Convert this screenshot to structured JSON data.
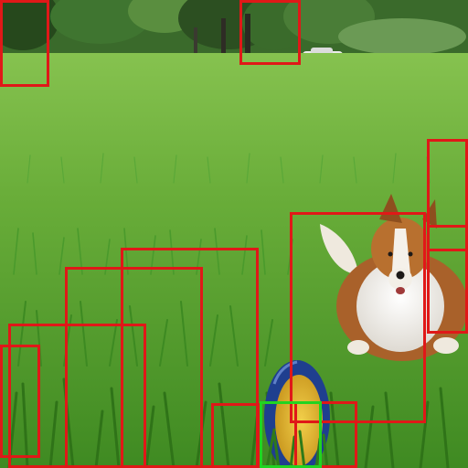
{
  "scene": {
    "description_free": true,
    "colors": {
      "sky": "#dfe7ea",
      "treeline": "#2f5a25",
      "grass_far": "#6fb03d",
      "grass_near": "#4f9c2b",
      "dog_coat": "#b86a2c",
      "dog_white": "#f3f0ea",
      "frisbee_rim": "#1f3f8f",
      "frisbee_center": "#e0b32a",
      "car": "#e8e8e8"
    }
  },
  "overlays": {
    "box_colors": {
      "red": "#e01818",
      "green": "#21d421"
    },
    "boxes": [
      {
        "name": "box-tree-left",
        "color": "red"
      },
      {
        "name": "box-tree-center",
        "color": "red"
      },
      {
        "name": "box-dog",
        "color": "red"
      },
      {
        "name": "box-dog-edge-upper",
        "color": "red"
      },
      {
        "name": "box-dog-edge-lower",
        "color": "red"
      },
      {
        "name": "box-grass-1",
        "color": "red"
      },
      {
        "name": "box-grass-2",
        "color": "red"
      },
      {
        "name": "box-grass-3",
        "color": "red"
      },
      {
        "name": "box-grass-4",
        "color": "red"
      },
      {
        "name": "box-grass-5",
        "color": "red"
      },
      {
        "name": "box-frisbee-right",
        "color": "red"
      },
      {
        "name": "box-frisbee",
        "color": "green"
      }
    ]
  }
}
